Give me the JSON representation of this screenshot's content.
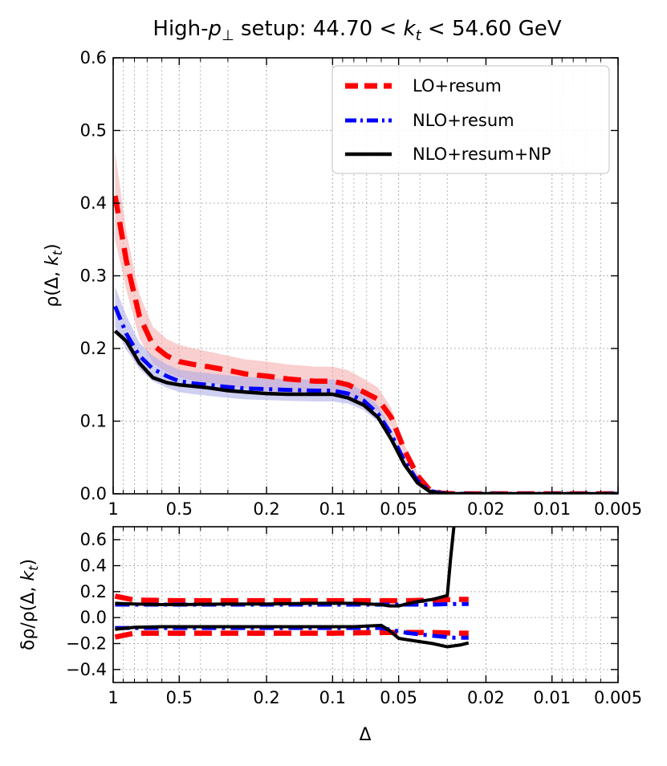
{
  "chart_data": [
    {
      "type": "line",
      "title": "High-p⊥ setup: 44.70 < k_t < 54.60 GeV",
      "title_parts": {
        "pre": "High-",
        "p": "p",
        "perp": "⊥",
        "mid": " setup: 44.70 < ",
        "k": "k",
        "t": "t",
        "post": " < 54.60 GeV"
      },
      "xlabel": "Δ",
      "ylabel": "ρ(Δ, k_t)",
      "ylabel_parts": {
        "pre": "ρ(Δ, ",
        "k": "k",
        "t": "t",
        "post": ")"
      },
      "xscale": "log",
      "x_reversed": true,
      "xlim": [
        1.0,
        0.005
      ],
      "ylim": [
        0.0,
        0.6
      ],
      "xticks": [
        {
          "value": 1,
          "label": "1"
        },
        {
          "value": 0.5,
          "label": "0.5"
        },
        {
          "value": 0.2,
          "label": "0.2"
        },
        {
          "value": 0.1,
          "label": "0.1"
        },
        {
          "value": 0.05,
          "label": "0.05"
        },
        {
          "value": 0.02,
          "label": "0.02"
        },
        {
          "value": 0.01,
          "label": "0.01"
        },
        {
          "value": 0.005,
          "label": "0.005"
        }
      ],
      "yticks": [
        {
          "value": 0.0,
          "label": "0.0"
        },
        {
          "value": 0.1,
          "label": "0.1"
        },
        {
          "value": 0.2,
          "label": "0.2"
        },
        {
          "value": 0.3,
          "label": "0.3"
        },
        {
          "value": 0.4,
          "label": "0.4"
        },
        {
          "value": 0.5,
          "label": "0.5"
        },
        {
          "value": 0.6,
          "label": "0.6"
        }
      ],
      "grid": true,
      "legend": {
        "position": "top-right"
      },
      "x": [
        0.98,
        0.87,
        0.76,
        0.66,
        0.57,
        0.5,
        0.43,
        0.37,
        0.3,
        0.25,
        0.2,
        0.16,
        0.12,
        0.1,
        0.085,
        0.072,
        0.062,
        0.054,
        0.047,
        0.041,
        0.036,
        0.032,
        0.028,
        0.02,
        0.01,
        0.005
      ],
      "series": [
        {
          "name": "LO+resum",
          "color": "#ff0000",
          "band_color": "#f4a7a7",
          "dash": "dashed",
          "values": [
            0.41,
            0.32,
            0.245,
            0.205,
            0.19,
            0.182,
            0.178,
            0.175,
            0.17,
            0.165,
            0.162,
            0.158,
            0.155,
            0.155,
            0.15,
            0.14,
            0.13,
            0.105,
            0.06,
            0.025,
            0.005,
            0.001,
            0.0,
            0.0,
            0.0,
            0.0
          ],
          "upper": [
            0.47,
            0.36,
            0.275,
            0.23,
            0.213,
            0.205,
            0.2,
            0.196,
            0.19,
            0.185,
            0.182,
            0.178,
            0.175,
            0.175,
            0.17,
            0.158,
            0.146,
            0.118,
            0.068,
            0.029,
            0.006,
            0.0015,
            0.0,
            0.0,
            0.0,
            0.0
          ],
          "lower": [
            0.35,
            0.28,
            0.215,
            0.18,
            0.167,
            0.16,
            0.156,
            0.153,
            0.149,
            0.145,
            0.142,
            0.139,
            0.136,
            0.136,
            0.132,
            0.123,
            0.114,
            0.092,
            0.052,
            0.021,
            0.004,
            0.0005,
            0.0,
            0.0,
            0.0,
            0.0
          ]
        },
        {
          "name": "NLO+resum",
          "color": "#0000ff",
          "band_color": "#a7a7e8",
          "dash": "dashdot",
          "values": [
            0.258,
            0.22,
            0.19,
            0.172,
            0.162,
            0.155,
            0.152,
            0.15,
            0.147,
            0.145,
            0.144,
            0.143,
            0.142,
            0.142,
            0.138,
            0.128,
            0.11,
            0.082,
            0.045,
            0.018,
            0.004,
            0.001,
            0.0,
            0.0,
            0.0,
            0.0
          ],
          "upper": [
            0.285,
            0.245,
            0.208,
            0.19,
            0.178,
            0.171,
            0.168,
            0.166,
            0.163,
            0.161,
            0.159,
            0.158,
            0.157,
            0.157,
            0.153,
            0.141,
            0.121,
            0.09,
            0.05,
            0.02,
            0.0045,
            0.0012,
            0.0,
            0.0,
            0.0,
            0.0
          ],
          "lower": [
            0.23,
            0.198,
            0.172,
            0.155,
            0.146,
            0.14,
            0.137,
            0.135,
            0.132,
            0.13,
            0.129,
            0.128,
            0.127,
            0.127,
            0.124,
            0.115,
            0.099,
            0.074,
            0.04,
            0.016,
            0.0035,
            0.0008,
            0.0,
            0.0,
            0.0,
            0.0
          ]
        },
        {
          "name": "NLO+resum+NP",
          "color": "#000000",
          "dash": "solid",
          "values": [
            0.224,
            0.21,
            0.18,
            0.16,
            0.153,
            0.15,
            0.148,
            0.146,
            0.142,
            0.14,
            0.138,
            0.137,
            0.137,
            0.137,
            0.132,
            0.122,
            0.105,
            0.075,
            0.04,
            0.015,
            0.003,
            0.0005,
            0.0,
            0.0,
            0.0,
            0.0
          ]
        }
      ]
    },
    {
      "type": "line",
      "xlabel": "Δ",
      "ylabel": "δρ/ρ(Δ, k_t)",
      "ylabel_parts": {
        "pre": "δρ/ρ(Δ, ",
        "k": "k",
        "t": "t",
        "post": ")"
      },
      "xscale": "log",
      "x_reversed": true,
      "xlim": [
        1.0,
        0.005
      ],
      "ylim": [
        -0.5,
        0.7
      ],
      "xticks": [
        {
          "value": 1,
          "label": "1"
        },
        {
          "value": 0.5,
          "label": "0.5"
        },
        {
          "value": 0.2,
          "label": "0.2"
        },
        {
          "value": 0.1,
          "label": "0.1"
        },
        {
          "value": 0.05,
          "label": "0.05"
        },
        {
          "value": 0.02,
          "label": "0.02"
        },
        {
          "value": 0.01,
          "label": "0.01"
        },
        {
          "value": 0.005,
          "label": "0.005"
        }
      ],
      "yticks": [
        {
          "value": -0.4,
          "label": "−0.4"
        },
        {
          "value": -0.2,
          "label": "−0.2"
        },
        {
          "value": 0.0,
          "label": "0.0"
        },
        {
          "value": 0.2,
          "label": "0.2"
        },
        {
          "value": 0.4,
          "label": "0.4"
        },
        {
          "value": 0.6,
          "label": "0.6"
        }
      ],
      "grid": true,
      "series": [
        {
          "name": "LO+resum upper",
          "color": "#ff0000",
          "dash": "dashed",
          "x": [
            0.98,
            0.8,
            0.5,
            0.2,
            0.1,
            0.06,
            0.045,
            0.035,
            0.028,
            0.024
          ],
          "values": [
            0.165,
            0.135,
            0.13,
            0.13,
            0.13,
            0.13,
            0.13,
            0.135,
            0.14,
            0.14
          ]
        },
        {
          "name": "LO+resum lower",
          "color": "#ff0000",
          "dash": "dashed",
          "x": [
            0.98,
            0.8,
            0.5,
            0.2,
            0.1,
            0.06,
            0.045,
            0.035,
            0.028,
            0.024
          ],
          "values": [
            -0.15,
            -0.12,
            -0.12,
            -0.12,
            -0.12,
            -0.115,
            -0.115,
            -0.115,
            -0.12,
            -0.12
          ]
        },
        {
          "name": "NLO+resum upper",
          "color": "#0000ff",
          "dash": "dashdot",
          "x": [
            0.98,
            0.8,
            0.5,
            0.2,
            0.1,
            0.06,
            0.045,
            0.035,
            0.028,
            0.024
          ],
          "values": [
            0.1,
            0.1,
            0.1,
            0.1,
            0.1,
            0.1,
            0.1,
            0.1,
            0.105,
            0.105
          ]
        },
        {
          "name": "NLO+resum lower",
          "color": "#0000ff",
          "dash": "dashdot",
          "x": [
            0.98,
            0.8,
            0.5,
            0.2,
            0.1,
            0.06,
            0.045,
            0.035,
            0.028,
            0.024
          ],
          "values": [
            -0.08,
            -0.08,
            -0.08,
            -0.08,
            -0.08,
            -0.08,
            -0.12,
            -0.14,
            -0.155,
            -0.155
          ]
        },
        {
          "name": "NLO+resum+NP upper",
          "color": "#000000",
          "dash": "solid",
          "x": [
            0.98,
            0.8,
            0.6,
            0.5,
            0.3,
            0.2,
            0.12,
            0.08,
            0.06,
            0.055,
            0.05,
            0.042,
            0.035,
            0.03,
            0.029,
            0.028
          ],
          "values": [
            0.11,
            0.105,
            0.1,
            0.1,
            0.105,
            0.105,
            0.11,
            0.11,
            0.1,
            0.09,
            0.09,
            0.12,
            0.14,
            0.17,
            0.45,
            0.7
          ]
        },
        {
          "name": "NLO+resum+NP lower",
          "color": "#000000",
          "dash": "solid",
          "x": [
            0.98,
            0.8,
            0.6,
            0.5,
            0.3,
            0.2,
            0.12,
            0.08,
            0.06,
            0.055,
            0.05,
            0.042,
            0.035,
            0.03,
            0.026,
            0.024
          ],
          "values": [
            -0.09,
            -0.075,
            -0.07,
            -0.07,
            -0.07,
            -0.07,
            -0.07,
            -0.07,
            -0.06,
            -0.1,
            -0.16,
            -0.18,
            -0.2,
            -0.225,
            -0.21,
            -0.195
          ]
        }
      ]
    }
  ]
}
